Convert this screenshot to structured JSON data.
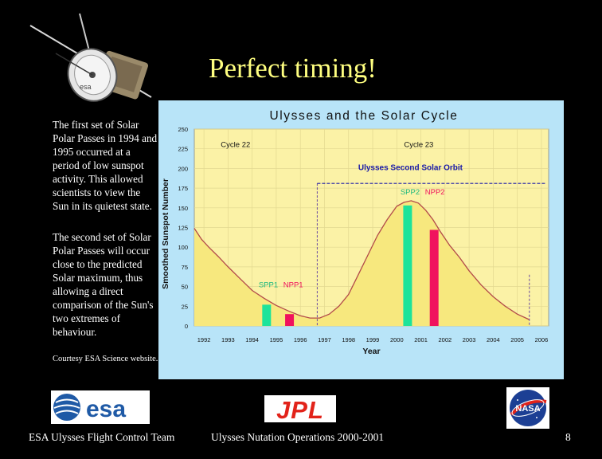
{
  "slide": {
    "title": "Perfect timing!",
    "paragraph1": "The first set of Solar Polar Passes in 1994 and 1995 occurred at a period of low sunspot activity.  This allowed scientists to view the Sun in its quietest state.",
    "paragraph2": "The second set of Solar Polar Passes will occur close to the predicted Solar maximum, thus allowing a direct comparison of the Sun's two extremes of behaviour.",
    "courtesy": "Courtesy ESA Science website.",
    "footer_left": "ESA Ulysses Flight Control Team",
    "footer_center": "Ulysses Nutation Operations 2000-2001",
    "page_number": "8"
  },
  "logos": {
    "esa": "esa",
    "jpl": "JPL",
    "nasa": "NASA",
    "spacecraft_label": "esa"
  },
  "colors": {
    "title": "#ffff80",
    "chart_bg": "#b8e4f8",
    "plot_bg": "#fbf2a6",
    "curve_fill": "#f7e87e",
    "curve_line": "#b24a4a",
    "south_pass": "#1de39a",
    "north_pass": "#f0125e",
    "orbit_label": "#1a1aa8"
  },
  "chart_data": {
    "type": "area",
    "title": "Ulysses and the Solar Cycle",
    "xlabel": "Year",
    "ylabel": "Smoothed Sunspot Number",
    "xlim": [
      1991.6,
      2006.3
    ],
    "ylim": [
      0,
      250
    ],
    "xticks": [
      1992,
      1993,
      1994,
      1995,
      1996,
      1997,
      1998,
      1999,
      2000,
      2001,
      2002,
      2003,
      2004,
      2005,
      2006
    ],
    "yticks": [
      0,
      25,
      50,
      75,
      100,
      125,
      150,
      175,
      200,
      225,
      250
    ],
    "grid": true,
    "series": [
      {
        "x": [
          1991.6,
          1991.9,
          1992.2,
          1992.6,
          1993.0,
          1993.5,
          1994.0,
          1994.5,
          1995.0,
          1995.5,
          1996.0,
          1996.4,
          1996.8,
          1997.2,
          1997.6,
          1998.0,
          1998.4,
          1998.8,
          1999.2,
          1999.6,
          2000.0,
          2000.3,
          2000.6,
          2000.9,
          2001.2,
          2001.5,
          2001.8,
          2002.2,
          2002.6,
          2003.0,
          2003.5,
          2004.0,
          2004.5,
          2005.0,
          2005.5
        ],
        "values": [
          124,
          110,
          100,
          88,
          75,
          60,
          45,
          35,
          26,
          19,
          13,
          10,
          10,
          15,
          25,
          40,
          65,
          90,
          115,
          135,
          152,
          157,
          159,
          156,
          147,
          135,
          120,
          102,
          87,
          70,
          52,
          37,
          25,
          15,
          8
        ]
      }
    ],
    "bars": [
      {
        "label": "SPP1",
        "x": 1994.6,
        "value": 27,
        "kind": "south"
      },
      {
        "label": "NPP1",
        "x": 1995.55,
        "value": 15,
        "kind": "north"
      },
      {
        "label": "SPP2",
        "x": 2000.45,
        "value": 153,
        "kind": "south"
      },
      {
        "label": "NPP2",
        "x": 2001.55,
        "value": 122,
        "kind": "north"
      }
    ],
    "pass_labels_1": {
      "spp": "SPP1",
      "npp": "NPP1",
      "x": 1994.6,
      "y": 49
    },
    "pass_labels_2": {
      "spp": "SPP2",
      "npp": "NPP2",
      "x": 2000.15,
      "y": 167
    },
    "cycle_markers": [
      {
        "label": "Cycle 22",
        "x": 1992.7,
        "y": 227
      },
      {
        "label": "Cycle 23",
        "x": 2000.3,
        "y": 227
      }
    ],
    "cycle_boundary_x": 1996.7,
    "orbit_label": "Ulysses Second Solar Orbit",
    "orbit_label_pos": {
      "x": 1998.4,
      "y": 198
    },
    "orbit_line": {
      "x_start": 1996.7,
      "x_end": 2006.2,
      "y": 181
    },
    "orbit_end_x": 2005.5
  }
}
